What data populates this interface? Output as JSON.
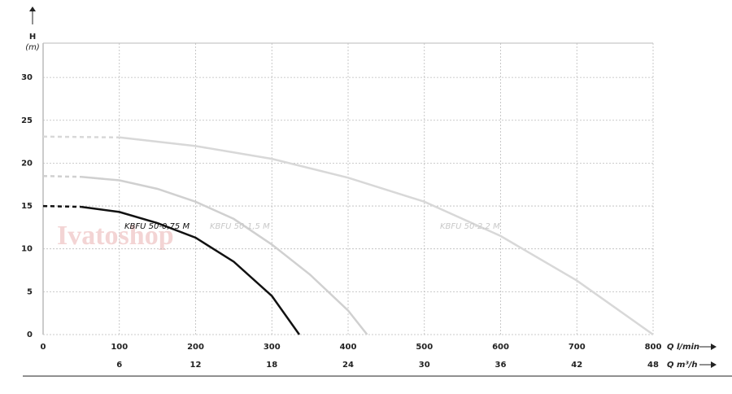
{
  "chart_data": {
    "type": "line",
    "y_label": "H",
    "y_unit": "(m)",
    "x_label": "Q l/min",
    "x2_label": "Q m³/h",
    "watermark": "Ivatoshop",
    "xlim": [
      0,
      800
    ],
    "xticks": [
      0,
      100,
      200,
      300,
      400,
      500,
      600,
      700,
      800
    ],
    "x2lim": [
      0,
      48
    ],
    "x2ticks": [
      6,
      12,
      18,
      24,
      30,
      36,
      42,
      48
    ],
    "ylim": [
      0,
      34
    ],
    "yticks": [
      0,
      5,
      10,
      15,
      20,
      25,
      30
    ],
    "grid": true,
    "series": [
      {
        "name": "KBFU 50-0,75 M",
        "color": "#111111",
        "x": [
          0,
          50,
          100,
          150,
          200,
          250,
          300,
          336
        ],
        "values": [
          15,
          14.9,
          14.3,
          13,
          11.3,
          8.5,
          4.5,
          0
        ]
      },
      {
        "name": "KBFU 50-1,5 M",
        "color": "#d0d0d0",
        "x": [
          0,
          50,
          100,
          150,
          200,
          250,
          300,
          350,
          400,
          425
        ],
        "values": [
          18.5,
          18.4,
          18,
          17,
          15.5,
          13.5,
          10.5,
          7,
          2.8,
          0
        ]
      },
      {
        "name": "KBFU 50-2,2 M",
        "color": "#d8d8d8",
        "x": [
          0,
          100,
          200,
          300,
          400,
          500,
          600,
          700,
          800
        ],
        "values": [
          23.1,
          23,
          22,
          20.5,
          18.3,
          15.5,
          11.5,
          6.3,
          0
        ]
      }
    ]
  }
}
